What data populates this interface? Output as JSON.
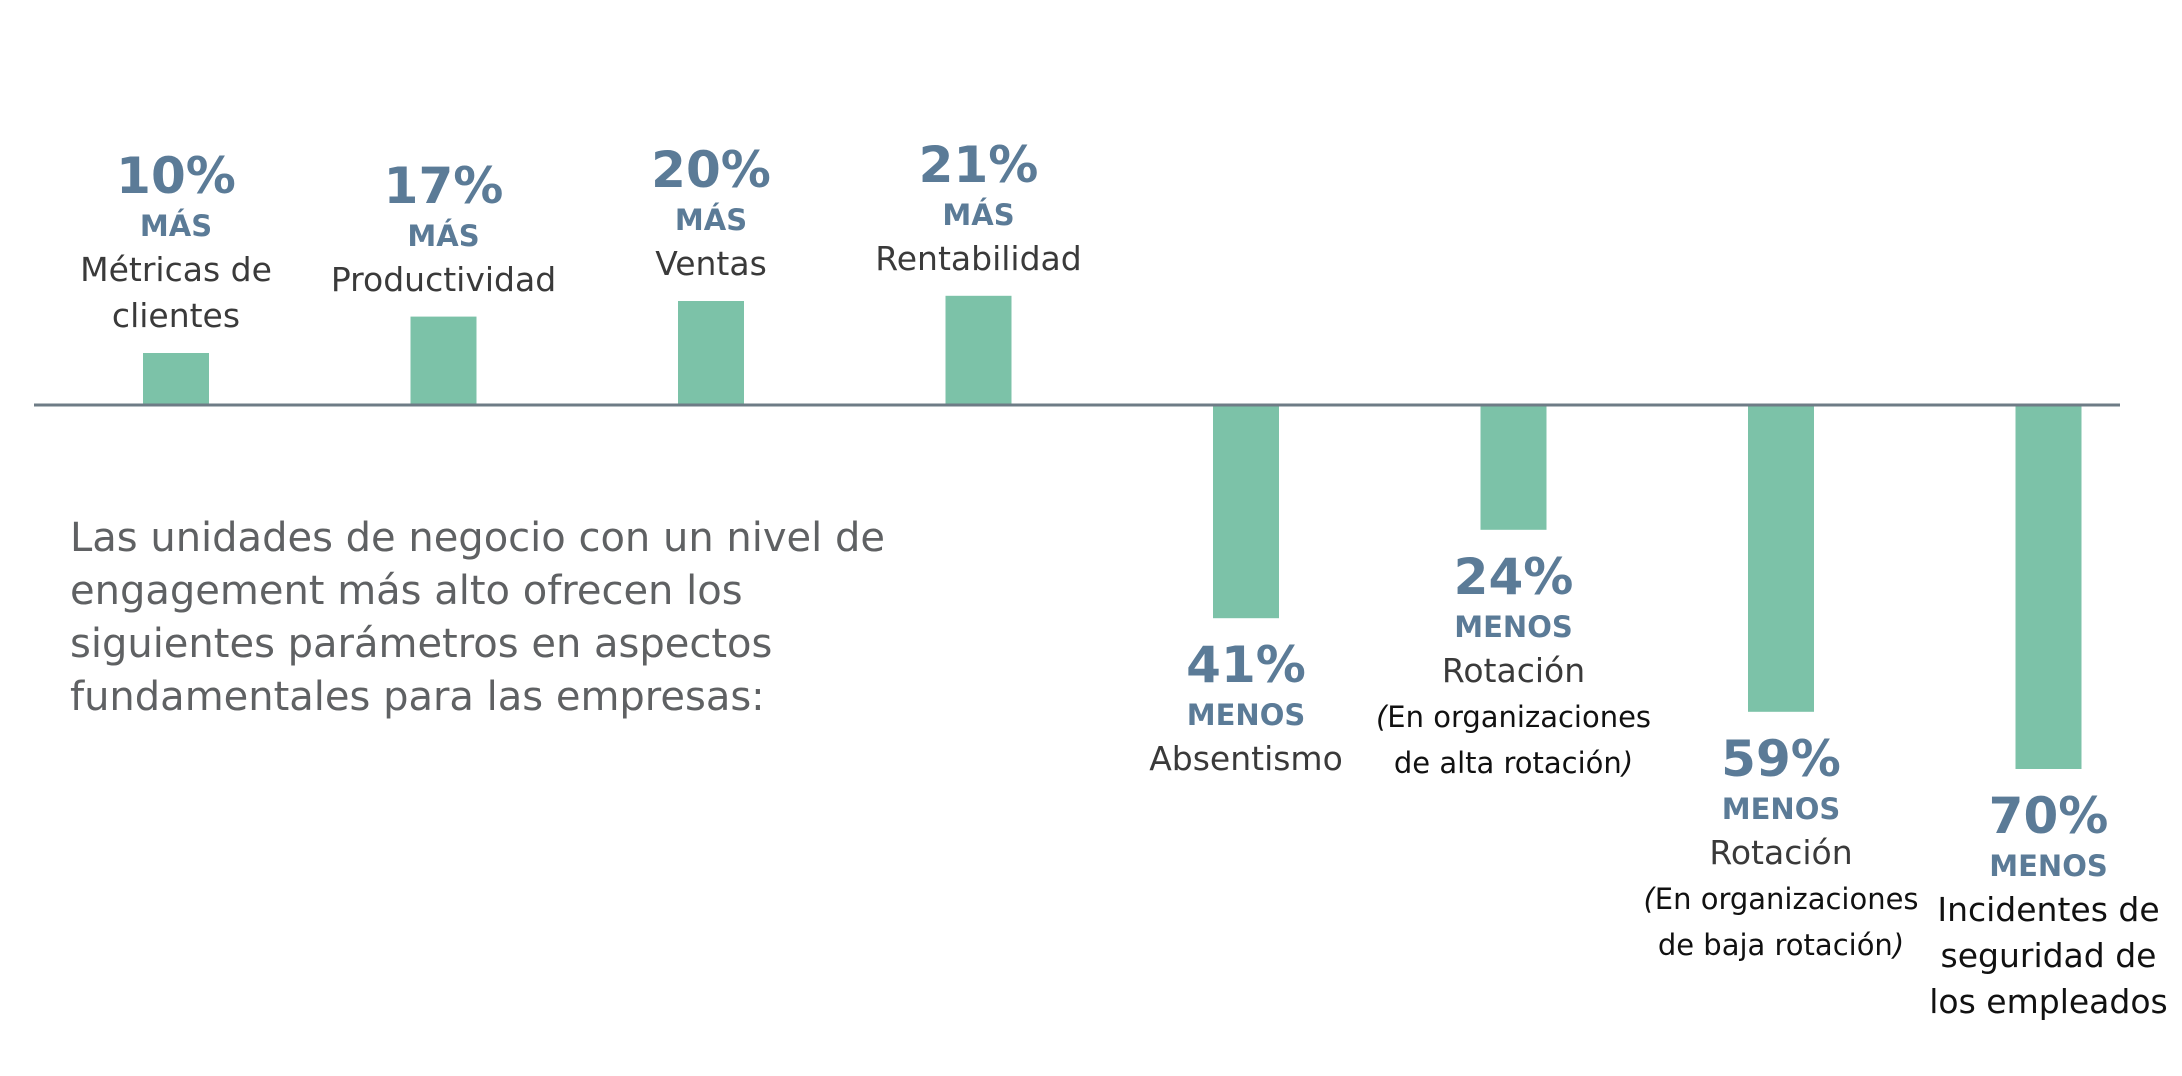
{
  "description": "Las unidades de negocio con un nivel de engagement más alto ofrecen los siguientes parámetros en aspectos fundamentales para las empresas:",
  "colors": {
    "bar": "#7cc2a8",
    "axis": "#6e7c86",
    "value": "#5b7b97",
    "text": "#3a3a3a"
  },
  "chart_data": {
    "type": "bar",
    "categories": [
      "Métricas de clientes",
      "Productividad",
      "Ventas",
      "Rentabilidad",
      "Absentismo",
      "Rotación (En organizaciones de alta rotación)",
      "Rotación (En organizaciones de baja rotación)",
      "Incidentes de seguridad de los empleados"
    ],
    "values": [
      10,
      17,
      20,
      21,
      -41,
      -24,
      -59,
      -70
    ],
    "ylim": [
      -70,
      21
    ],
    "grid": false,
    "labels": [
      {
        "pct": "10%",
        "dir": "MÁS",
        "metric": "Métricas de clientes",
        "note": ""
      },
      {
        "pct": "17%",
        "dir": "MÁS",
        "metric": "Productividad",
        "note": ""
      },
      {
        "pct": "20%",
        "dir": "MÁS",
        "metric": "Ventas",
        "note": ""
      },
      {
        "pct": "21%",
        "dir": "MÁS",
        "metric": "Rentabilidad",
        "note": ""
      },
      {
        "pct": "41%",
        "dir": "MENOS",
        "metric": "Absentismo",
        "note": ""
      },
      {
        "pct": "24%",
        "dir": "MENOS",
        "metric": "Rotación",
        "note": "En organizaciones de alta rotación"
      },
      {
        "pct": "59%",
        "dir": "MENOS",
        "metric": "Rotación",
        "note": "En organizaciones de baja rotación"
      },
      {
        "pct": "70%",
        "dir": "MENOS",
        "metric": "Incidentes de seguridad de los empleados",
        "note": ""
      }
    ]
  }
}
